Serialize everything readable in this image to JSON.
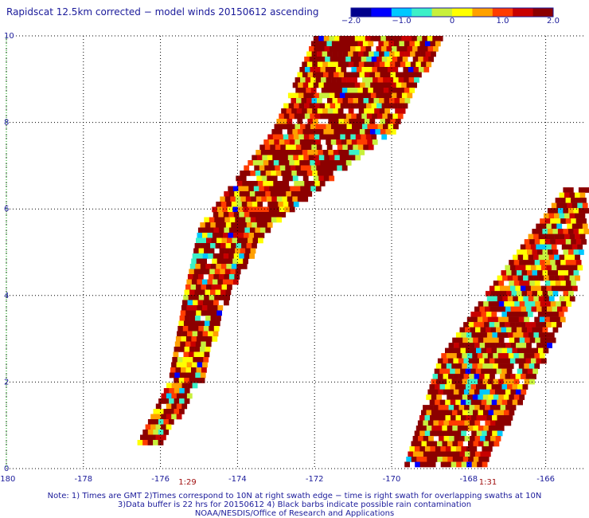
{
  "title": "Rapidscat 12.5km corrected − model winds 20150612 ascending",
  "colorbar": {
    "labels": [
      "−2.0",
      "−1.0",
      "0",
      "1.0",
      "2.0"
    ],
    "values": [
      -2.0,
      -1.0,
      0,
      1.0,
      2.0
    ],
    "colors": [
      "#00008c",
      "#0000ff",
      "#00c8ff",
      "#3cf0c8",
      "#c8f03c",
      "#ffff00",
      "#ffa000",
      "#ff3c00",
      "#c80000",
      "#8c0000"
    ]
  },
  "chart_data": {
    "type": "heatmap",
    "title": "Rapidscat 12.5km corrected − model winds 20150612 ascending",
    "x_tick_labels": [
      "-180",
      "-178",
      "-176",
      "-174",
      "-172",
      "-170",
      "-168",
      "-166"
    ],
    "y_tick_labels": [
      "0",
      "2",
      "4",
      "6",
      "8",
      "10"
    ],
    "xlim": [
      -180,
      -165
    ],
    "ylim": [
      0,
      10
    ],
    "grid": true,
    "color_range": [
      -2.0,
      2.0
    ],
    "swaths": [
      {
        "time_label": "1:29",
        "time_label_lon": -175.3,
        "edges": [
          {
            "lat": 0.6,
            "lon_min": -176.6,
            "lon_max": -176.0
          },
          {
            "lat": 2.0,
            "lon_min": -175.8,
            "lon_max": -175.0
          },
          {
            "lat": 4.0,
            "lon_min": -175.4,
            "lon_max": -174.3
          },
          {
            "lat": 5.6,
            "lon_min": -175.0,
            "lon_max": -173.2
          },
          {
            "lat": 7.8,
            "lon_min": -173.1,
            "lon_max": -170.0
          },
          {
            "lat": 10.0,
            "lon_min": -172.0,
            "lon_max": -168.7
          }
        ]
      },
      {
        "time_label": "1:31",
        "time_label_lon": -167.5,
        "edges": [
          {
            "lat": 0.0,
            "lon_min": -169.7,
            "lon_max": -167.7
          },
          {
            "lat": 2.5,
            "lon_min": -168.8,
            "lon_max": -166.1
          },
          {
            "lat": 4.0,
            "lon_min": -167.6,
            "lon_max": -165.3
          },
          {
            "lat": 6.5,
            "lon_min": -165.5,
            "lon_max": -164.8
          }
        ]
      }
    ]
  },
  "notes": {
    "line1": "Note: 1) Times are GMT 2)Times correspond to 10N at right swath edge − time is right swath for overlapping swaths at 10N",
    "line2": "3)Data buffer is 22 hrs for 20150612 4) Black barbs indicate possible rain contamination",
    "line3": "NOAA/NESDIS/Office of Research and Applications"
  }
}
